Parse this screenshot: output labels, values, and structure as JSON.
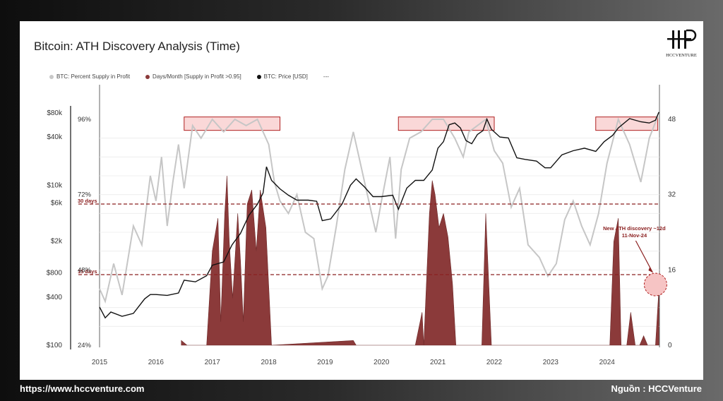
{
  "title": "Bitcoin: ATH Discovery Analysis (Time)",
  "logo_text": "HCCVENTURE",
  "footer": {
    "url": "https://www.hccventure.com",
    "source": "Nguồn : HCCVenture"
  },
  "legend": [
    {
      "label": "BTC: Percent Supply in Profit",
      "color": "#c8c8c8"
    },
    {
      "label": "Days/Month [Supply in Profit >0.95]",
      "color": "#8b3a3a"
    },
    {
      "label": "BTC: Price [USD]",
      "color": "#111111"
    },
    {
      "label": "---",
      "color": ""
    }
  ],
  "chart_data": {
    "type": "line",
    "title": "Bitcoin: ATH Discovery Analysis (Time)",
    "x_ticks": [
      "2015",
      "2016",
      "2017",
      "2018",
      "2019",
      "2020",
      "2021",
      "2022",
      "2023",
      "2024"
    ],
    "y_left_price_ticks": [
      "$80k",
      "$40k",
      "$10k",
      "$6k",
      "$2k",
      "$800",
      "$400",
      "$100"
    ],
    "y_left_percent_ticks": [
      "96%",
      "72%",
      "48%",
      "24%"
    ],
    "y_right_ticks": [
      "48",
      "32",
      "16",
      "0"
    ],
    "price_scale": "log",
    "reference_lines": [
      {
        "label": "30 days",
        "value": 30
      },
      {
        "label": "15 days",
        "value": 15
      }
    ],
    "highlight_boxes": [
      {
        "from": "2016.5",
        "to": "2018.2"
      },
      {
        "from": "2020.3",
        "to": "2022.0"
      },
      {
        "from": "2023.8",
        "to": "2024.9"
      }
    ],
    "annotation": {
      "text_line1": "New ATH discovery ~12d",
      "text_line2": "11-Nov-24",
      "x": 2024.86,
      "days": 12
    },
    "series": [
      {
        "name": "BTC: Price [USD]",
        "x": [
          2015.0,
          2015.1,
          2015.2,
          2015.4,
          2015.6,
          2015.8,
          2015.9,
          2016.0,
          2016.2,
          2016.4,
          2016.5,
          2016.7,
          2016.9,
          2017.0,
          2017.2,
          2017.35,
          2017.5,
          2017.65,
          2017.8,
          2017.9,
          2017.96,
          2018.05,
          2018.2,
          2018.35,
          2018.5,
          2018.7,
          2018.85,
          2018.95,
          2019.1,
          2019.3,
          2019.45,
          2019.55,
          2019.7,
          2019.85,
          2020.0,
          2020.2,
          2020.3,
          2020.45,
          2020.6,
          2020.75,
          2020.9,
          2021.0,
          2021.1,
          2021.2,
          2021.3,
          2021.4,
          2021.5,
          2021.6,
          2021.7,
          2021.8,
          2021.87,
          2021.95,
          2022.1,
          2022.25,
          2022.4,
          2022.55,
          2022.75,
          2022.9,
          2023.0,
          2023.2,
          2023.4,
          2023.6,
          2023.8,
          2023.95,
          2024.1,
          2024.2,
          2024.4,
          2024.6,
          2024.75,
          2024.86,
          2024.92
        ],
        "y": [
          300,
          220,
          260,
          230,
          250,
          380,
          430,
          430,
          420,
          450,
          650,
          620,
          740,
          1000,
          1100,
          1800,
          2500,
          4200,
          5800,
          8000,
          17000,
          11500,
          9000,
          7500,
          6500,
          6500,
          6300,
          3600,
          3800,
          5800,
          10000,
          12000,
          9500,
          7200,
          7200,
          7500,
          5000,
          9200,
          11500,
          11500,
          15500,
          29000,
          35000,
          57000,
          60000,
          52000,
          36000,
          33000,
          43000,
          48000,
          67000,
          50000,
          40000,
          39000,
          22000,
          21000,
          20000,
          16500,
          16500,
          24000,
          27000,
          29000,
          26500,
          35000,
          42000,
          52000,
          68000,
          62000,
          60000,
          65000,
          82000
        ]
      },
      {
        "name": "Days/Month [Supply in Profit >0.95]",
        "x": [
          2016.45,
          2016.55,
          2016.9,
          2017.0,
          2017.1,
          2017.15,
          2017.22,
          2017.26,
          2017.3,
          2017.36,
          2017.45,
          2017.5,
          2017.55,
          2017.62,
          2017.7,
          2017.78,
          2017.85,
          2017.95,
          2018.05,
          2019.5,
          2019.55,
          2020.6,
          2020.72,
          2020.75,
          2020.85,
          2020.9,
          2020.95,
          2021.02,
          2021.1,
          2021.18,
          2021.26,
          2021.32,
          2021.42,
          2021.78,
          2021.85,
          2021.95,
          2024.05,
          2024.12,
          2024.2,
          2024.25,
          2024.35,
          2024.42,
          2024.5,
          2024.58,
          2024.65,
          2024.72,
          2024.86,
          2024.92
        ],
        "y": [
          1,
          0,
          0,
          20,
          27,
          5,
          28,
          36,
          22,
          10,
          28,
          18,
          5,
          30,
          33,
          20,
          33,
          25,
          0,
          1,
          0,
          0,
          7,
          0,
          28,
          35,
          32,
          25,
          28,
          23,
          13,
          0,
          0,
          0,
          28,
          0,
          0,
          22,
          27,
          0,
          0,
          7,
          0,
          0,
          2,
          0,
          0,
          12
        ]
      },
      {
        "name": "BTC: Percent Supply in Profit",
        "x": [
          2015.0,
          2015.1,
          2015.25,
          2015.4,
          2015.6,
          2015.75,
          2015.9,
          2016.0,
          2016.1,
          2016.2,
          2016.3,
          2016.4,
          2016.5,
          2016.65,
          2016.8,
          2017.0,
          2017.2,
          2017.4,
          2017.6,
          2017.8,
          2018.0,
          2018.1,
          2018.2,
          2018.35,
          2018.5,
          2018.65,
          2018.8,
          2018.95,
          2019.05,
          2019.2,
          2019.35,
          2019.5,
          2019.6,
          2019.75,
          2019.9,
          2020.0,
          2020.15,
          2020.25,
          2020.35,
          2020.5,
          2020.7,
          2020.9,
          2021.1,
          2021.3,
          2021.45,
          2021.55,
          2021.7,
          2021.85,
          2022.0,
          2022.15,
          2022.3,
          2022.45,
          2022.6,
          2022.8,
          2022.95,
          2023.1,
          2023.25,
          2023.4,
          2023.55,
          2023.7,
          2023.85,
          2024.0,
          2024.2,
          2024.4,
          2024.6,
          2024.75,
          2024.9
        ],
        "y": [
          42,
          38,
          50,
          40,
          62,
          56,
          78,
          70,
          84,
          62,
          76,
          88,
          74,
          94,
          90,
          96,
          92,
          96,
          94,
          96,
          88,
          76,
          70,
          66,
          72,
          60,
          58,
          42,
          46,
          62,
          80,
          92,
          84,
          72,
          60,
          70,
          84,
          58,
          80,
          90,
          92,
          96,
          96,
          90,
          84,
          92,
          94,
          96,
          86,
          82,
          68,
          74,
          56,
          52,
          46,
          50,
          64,
          70,
          62,
          56,
          66,
          82,
          96,
          88,
          76,
          90,
          97
        ]
      }
    ]
  }
}
